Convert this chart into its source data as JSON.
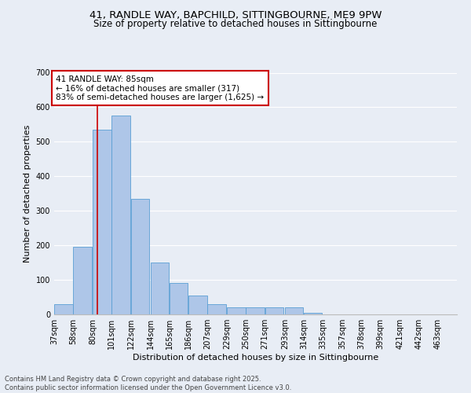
{
  "title_line1": "41, RANDLE WAY, BAPCHILD, SITTINGBOURNE, ME9 9PW",
  "title_line2": "Size of property relative to detached houses in Sittingbourne",
  "xlabel": "Distribution of detached houses by size in Sittingbourne",
  "ylabel": "Number of detached properties",
  "bin_labels": [
    "37sqm",
    "58sqm",
    "80sqm",
    "101sqm",
    "122sqm",
    "144sqm",
    "165sqm",
    "186sqm",
    "207sqm",
    "229sqm",
    "250sqm",
    "271sqm",
    "293sqm",
    "314sqm",
    "335sqm",
    "357sqm",
    "378sqm",
    "399sqm",
    "421sqm",
    "442sqm",
    "463sqm"
  ],
  "bin_edges": [
    37,
    58,
    80,
    101,
    122,
    144,
    165,
    186,
    207,
    229,
    250,
    271,
    293,
    314,
    335,
    357,
    378,
    399,
    421,
    442,
    463
  ],
  "bar_heights": [
    30,
    195,
    535,
    575,
    335,
    150,
    90,
    55,
    30,
    20,
    20,
    20,
    20,
    5,
    0,
    0,
    0,
    0,
    0,
    0
  ],
  "bar_color": "#aec6e8",
  "bar_edge_color": "#5a9fd4",
  "bg_color": "#e8edf5",
  "grid_color": "#ffffff",
  "vline_x": 85,
  "vline_color": "#cc0000",
  "annotation_text": "41 RANDLE WAY: 85sqm\n← 16% of detached houses are smaller (317)\n83% of semi-detached houses are larger (1,625) →",
  "annotation_box_color": "#ffffff",
  "annotation_box_edge": "#cc0000",
  "ylim": [
    0,
    700
  ],
  "yticks": [
    0,
    100,
    200,
    300,
    400,
    500,
    600,
    700
  ],
  "footnote": "Contains HM Land Registry data © Crown copyright and database right 2025.\nContains public sector information licensed under the Open Government Licence v3.0.",
  "title_fontsize": 9.5,
  "subtitle_fontsize": 8.5,
  "axis_label_fontsize": 8,
  "tick_fontsize": 7,
  "annotation_fontsize": 7.5
}
